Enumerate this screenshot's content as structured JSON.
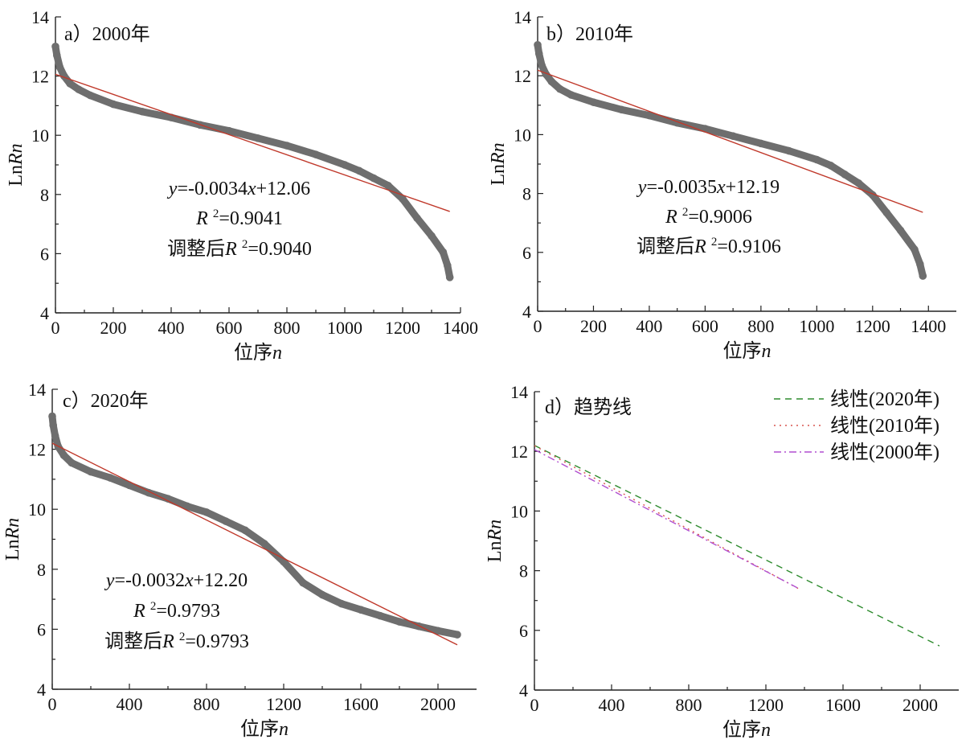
{
  "chart_data": [
    {
      "type": "scatter",
      "panel_label": "a）2000年",
      "xlabel": "位序n",
      "ylabel": "LnRn",
      "xlim": [
        0,
        1400
      ],
      "ylim": [
        4,
        14
      ],
      "xticks": [
        0,
        200,
        400,
        600,
        800,
        1000,
        1200,
        1400
      ],
      "yticks": [
        4,
        6,
        8,
        10,
        12,
        14
      ],
      "curve_points": [
        [
          0,
          13.0
        ],
        [
          5,
          12.7
        ],
        [
          15,
          12.3
        ],
        [
          30,
          12.0
        ],
        [
          50,
          11.75
        ],
        [
          80,
          11.55
        ],
        [
          120,
          11.35
        ],
        [
          200,
          11.05
        ],
        [
          300,
          10.8
        ],
        [
          400,
          10.6
        ],
        [
          500,
          10.35
        ],
        [
          600,
          10.15
        ],
        [
          700,
          9.9
        ],
        [
          800,
          9.65
        ],
        [
          900,
          9.35
        ],
        [
          1000,
          9.0
        ],
        [
          1050,
          8.8
        ],
        [
          1100,
          8.55
        ],
        [
          1150,
          8.3
        ],
        [
          1200,
          7.85
        ],
        [
          1250,
          7.2
        ],
        [
          1300,
          6.6
        ],
        [
          1340,
          6.05
        ],
        [
          1355,
          5.6
        ],
        [
          1363,
          5.2
        ]
      ],
      "fit_line": {
        "slope": -0.0034,
        "intercept": 12.06,
        "x_range": [
          0,
          1363
        ]
      },
      "annotations": {
        "equation_prefix": "y",
        "equation_body": "=-0.0034",
        "equation_x": "x",
        "equation_suffix": "+12.06",
        "r2_letter": "R",
        "r2_sup": "2",
        "r2_value": "=0.9041",
        "adj_prefix": "调整后",
        "adj_letter": "R",
        "adj_sup": "2",
        "adj_value": "=0.9040"
      }
    },
    {
      "type": "scatter",
      "panel_label": "b）2010年",
      "xlabel": "位序n",
      "ylabel": "LnRn",
      "xlim": [
        0,
        1500
      ],
      "ylim": [
        4,
        14
      ],
      "xticks": [
        0,
        200,
        400,
        600,
        800,
        1000,
        1200,
        1400
      ],
      "yticks": [
        4,
        6,
        8,
        10,
        12,
        14
      ],
      "curve_points": [
        [
          0,
          13.05
        ],
        [
          5,
          12.75
        ],
        [
          15,
          12.35
        ],
        [
          30,
          12.05
        ],
        [
          50,
          11.8
        ],
        [
          80,
          11.55
        ],
        [
          120,
          11.35
        ],
        [
          200,
          11.1
        ],
        [
          300,
          10.85
        ],
        [
          400,
          10.65
        ],
        [
          500,
          10.4
        ],
        [
          600,
          10.2
        ],
        [
          700,
          9.95
        ],
        [
          800,
          9.7
        ],
        [
          900,
          9.45
        ],
        [
          1000,
          9.15
        ],
        [
          1050,
          8.95
        ],
        [
          1100,
          8.65
        ],
        [
          1150,
          8.35
        ],
        [
          1200,
          7.95
        ],
        [
          1250,
          7.35
        ],
        [
          1300,
          6.75
        ],
        [
          1350,
          6.1
        ],
        [
          1370,
          5.6
        ],
        [
          1380,
          5.2
        ]
      ],
      "fit_line": {
        "slope": -0.0035,
        "intercept": 12.19,
        "x_range": [
          0,
          1380
        ]
      },
      "annotations": {
        "equation_prefix": "y",
        "equation_body": "=-0.0035",
        "equation_x": "x",
        "equation_suffix": "+12.19",
        "r2_letter": "R",
        "r2_sup": "2",
        "r2_value": "=0.9006",
        "adj_prefix": "调整后",
        "adj_letter": "R",
        "adj_sup": "2",
        "adj_value": "=0.9106"
      }
    },
    {
      "type": "scatter",
      "panel_label": "c）2020年",
      "xlabel": "位序n",
      "ylabel": "LnRn",
      "xlim": [
        0,
        2200
      ],
      "ylim": [
        4,
        14
      ],
      "xticks": [
        0,
        400,
        800,
        1200,
        1600,
        2000
      ],
      "yticks": [
        4,
        6,
        8,
        10,
        12,
        14
      ],
      "curve_points": [
        [
          0,
          13.1
        ],
        [
          5,
          12.8
        ],
        [
          15,
          12.45
        ],
        [
          30,
          12.1
        ],
        [
          60,
          11.8
        ],
        [
          100,
          11.55
        ],
        [
          200,
          11.25
        ],
        [
          300,
          11.05
        ],
        [
          400,
          10.8
        ],
        [
          500,
          10.55
        ],
        [
          600,
          10.35
        ],
        [
          700,
          10.1
        ],
        [
          800,
          9.9
        ],
        [
          900,
          9.6
        ],
        [
          1000,
          9.3
        ],
        [
          1100,
          8.85
        ],
        [
          1200,
          8.25
        ],
        [
          1300,
          7.55
        ],
        [
          1400,
          7.15
        ],
        [
          1500,
          6.85
        ],
        [
          1600,
          6.65
        ],
        [
          1700,
          6.45
        ],
        [
          1800,
          6.25
        ],
        [
          1900,
          6.1
        ],
        [
          2000,
          5.95
        ],
        [
          2100,
          5.82
        ]
      ],
      "fit_line": {
        "slope": -0.0032,
        "intercept": 12.2,
        "x_range": [
          0,
          2100
        ]
      },
      "annotations": {
        "equation_prefix": "y",
        "equation_body": "=-0.0032",
        "equation_x": "x",
        "equation_suffix": "+12.20",
        "r2_letter": "R",
        "r2_sup": "2",
        "r2_value": "=0.9793",
        "adj_prefix": "调整后",
        "adj_letter": "R",
        "adj_sup": "2",
        "adj_value": "=0.9793"
      }
    },
    {
      "type": "line",
      "panel_label": "d）趋势线",
      "xlabel": "位序n",
      "ylabel": "LnRn",
      "xlim": [
        0,
        2200
      ],
      "ylim": [
        4,
        14
      ],
      "xticks": [
        0,
        400,
        800,
        1200,
        1600,
        2000
      ],
      "yticks": [
        4,
        6,
        8,
        10,
        12,
        14
      ],
      "legend_position": "top-right",
      "series": [
        {
          "name": "线性(2020年)",
          "slope": -0.0032,
          "intercept": 12.2,
          "x_range": [
            0,
            2100
          ],
          "color": "#2e8b2e",
          "dash": "8,6"
        },
        {
          "name": "线性(2010年)",
          "slope": -0.0035,
          "intercept": 12.19,
          "x_range": [
            0,
            1380
          ],
          "color": "#d9534f",
          "dash": "2,5"
        },
        {
          "name": "线性(2000年)",
          "slope": -0.0034,
          "intercept": 12.06,
          "x_range": [
            0,
            1363
          ],
          "color": "#b04fd0",
          "dash": "9,4,2,4"
        }
      ]
    }
  ],
  "colors": {
    "scatter": "#6e6e6e",
    "fit": "#c0392b",
    "axis": "#222222"
  }
}
